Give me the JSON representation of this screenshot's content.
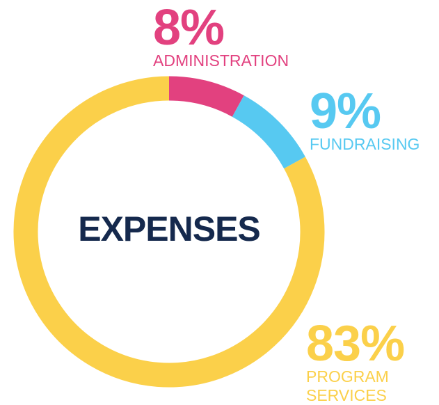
{
  "chart_data": {
    "type": "donut",
    "title": "EXPENSES",
    "categories": [
      "ADMINISTRATION",
      "FUNDRAISING",
      "PROGRAM SERVICES"
    ],
    "values": [
      8,
      9,
      83
    ],
    "value_labels": [
      "8%",
      "9%",
      "83%"
    ],
    "colors": [
      "#e2417f",
      "#57c9f1",
      "#fbd04a"
    ]
  }
}
